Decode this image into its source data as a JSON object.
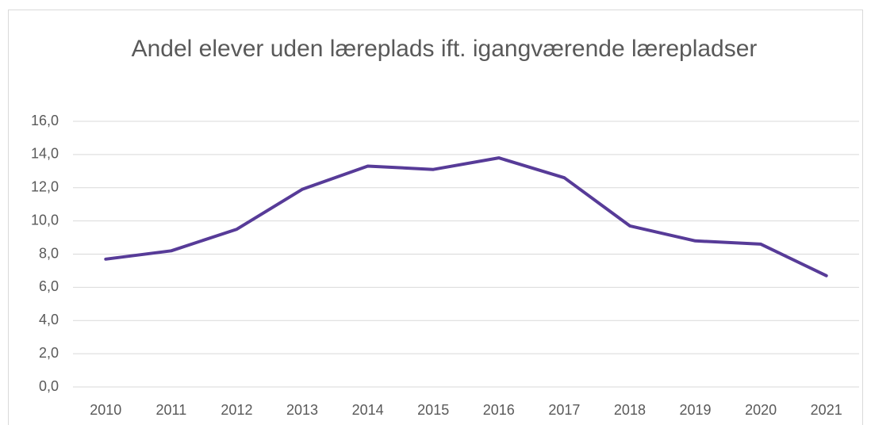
{
  "chart_data": {
    "type": "line",
    "title": "Andel elever uden læreplads ift. igangværende lærepladser",
    "categories": [
      "2010",
      "2011",
      "2012",
      "2013",
      "2014",
      "2015",
      "2016",
      "2017",
      "2018",
      "2019",
      "2020",
      "2021"
    ],
    "values": [
      7.7,
      8.2,
      9.5,
      11.9,
      13.3,
      13.1,
      13.8,
      12.6,
      9.7,
      8.8,
      8.6,
      6.7
    ],
    "color": "#573b98",
    "ylim": [
      0,
      16
    ],
    "yticks": [
      {
        "value": 0,
        "label": "0,0"
      },
      {
        "value": 2,
        "label": "2,0"
      },
      {
        "value": 4,
        "label": "4,0"
      },
      {
        "value": 6,
        "label": "6,0"
      },
      {
        "value": 8,
        "label": "8,0"
      },
      {
        "value": 10,
        "label": "10,0"
      },
      {
        "value": 12,
        "label": "12,0"
      },
      {
        "value": 14,
        "label": "14,0"
      },
      {
        "value": 16,
        "label": "16,0"
      }
    ],
    "grid": true
  }
}
